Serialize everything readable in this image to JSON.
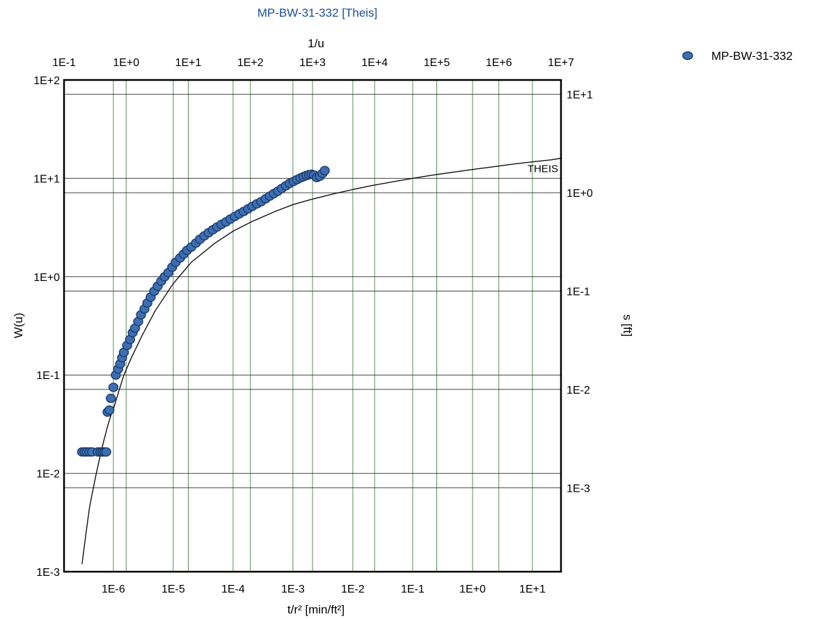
{
  "chart_data": {
    "type": "scatter",
    "title": "MP-BW-31-332 [Theis]",
    "xlabel": "t/r² [min/ft²]",
    "ylabel": "W(u)",
    "x2label": "1/u",
    "y2label": "s [ft]",
    "x_scale": "log",
    "y_scale": "log",
    "xlim": [
      1.5e-07,
      30.0
    ],
    "ylim": [
      0.001,
      100.0
    ],
    "x2lim": [
      0.1,
      10000000.0
    ],
    "y2lim": [
      0.00014,
      14.0
    ],
    "grid": true,
    "legend_position": "top-right",
    "x_ticks": [
      "1E-6",
      "1E-5",
      "1E-4",
      "1E-3",
      "1E-2",
      "1E-1",
      "1E+0",
      "1E+1"
    ],
    "y_ticks": [
      "1E-3",
      "1E-2",
      "1E-1",
      "1E+0",
      "1E+1",
      "1E+2"
    ],
    "x2_ticks": [
      "1E-1",
      "1E+0",
      "1E+1",
      "1E+2",
      "1E+3",
      "1E+4",
      "1E+5",
      "1E+6",
      "1E+7"
    ],
    "y2_ticks": [
      "1E-3",
      "1E-2",
      "1E-1",
      "1E+0",
      "1E+1"
    ],
    "series": [
      {
        "name": "MP-BW-31-332",
        "kind": "points",
        "color": "#3d6fb5",
        "x": [
          3e-07,
          3.3e-07,
          3.6e-07,
          4e-07,
          4.4e-07,
          5.5e-07,
          6.1e-07,
          6.6e-07,
          7.1e-07,
          7.6e-07,
          8e-07,
          8.6e-07,
          9.1e-07,
          1e-06,
          1.1e-06,
          1.2e-06,
          1.3e-06,
          1.4e-06,
          1.5e-06,
          1.7e-06,
          1.9e-06,
          2.1e-06,
          2.3e-06,
          2.6e-06,
          2.9e-06,
          3.3e-06,
          3.7e-06,
          4.2e-06,
          4.8e-06,
          5.5e-06,
          6.3e-06,
          7.2e-06,
          8.3e-06,
          9.6e-06,
          1.1e-05,
          1.3e-05,
          1.5e-05,
          1.7e-05,
          2e-05,
          2.4e-05,
          2.8e-05,
          3.3e-05,
          3.9e-05,
          4.6e-05,
          5.4e-05,
          6.4e-05,
          7.6e-05,
          9e-05,
          0.000107,
          0.000127,
          0.00015,
          0.000178,
          0.00021,
          0.00025,
          0.000295,
          0.00035,
          0.00041,
          0.00048,
          0.00056,
          0.00065,
          0.00076,
          0.00088,
          0.00102,
          0.00117,
          0.00133,
          0.0015,
          0.00168,
          0.00186,
          0.00205,
          0.00225,
          0.0025,
          0.0028,
          0.0031,
          0.0034
        ],
        "y": [
          0.0165,
          0.0165,
          0.0165,
          0.0165,
          0.0165,
          0.0165,
          0.0165,
          0.0165,
          0.0165,
          0.0165,
          0.042,
          0.044,
          0.058,
          0.075,
          0.1,
          0.115,
          0.13,
          0.15,
          0.17,
          0.2,
          0.23,
          0.27,
          0.3,
          0.35,
          0.41,
          0.47,
          0.54,
          0.62,
          0.71,
          0.8,
          0.9,
          1.0,
          1.1,
          1.25,
          1.4,
          1.55,
          1.7,
          1.85,
          2.0,
          2.2,
          2.4,
          2.6,
          2.8,
          3.0,
          3.2,
          3.4,
          3.6,
          3.85,
          4.1,
          4.35,
          4.6,
          4.9,
          5.2,
          5.5,
          5.8,
          6.2,
          6.6,
          7.0,
          7.4,
          7.9,
          8.4,
          8.9,
          9.3,
          9.7,
          10.1,
          10.4,
          10.7,
          10.9,
          11.0,
          10.8,
          10.2,
          10.5,
          11.2,
          12.0
        ]
      },
      {
        "name": "THEIS",
        "kind": "line",
        "color": "#111111",
        "x": [
          3e-07,
          3.5e-07,
          4e-07,
          4.5e-07,
          5e-07,
          6e-07,
          7e-07,
          8e-07,
          9e-07,
          1e-06,
          1.2e-06,
          1.5e-06,
          2e-06,
          3e-06,
          5e-06,
          1e-05,
          2e-05,
          5e-05,
          0.0001,
          0.0002,
          0.0005,
          0.001,
          0.002,
          0.005,
          0.01,
          0.02,
          0.05,
          0.1,
          0.2,
          0.5,
          1.0,
          2.0,
          5.0,
          10.0,
          20.0,
          30.0
        ],
        "y": [
          0.0012,
          0.0025,
          0.0045,
          0.0065,
          0.009,
          0.015,
          0.022,
          0.03,
          0.038,
          0.045,
          0.065,
          0.1,
          0.15,
          0.25,
          0.45,
          0.85,
          1.4,
          2.2,
          2.9,
          3.6,
          4.6,
          5.4,
          6.1,
          7.0,
          7.7,
          8.4,
          9.3,
          10.0,
          10.7,
          11.6,
          12.3,
          13.0,
          14.0,
          14.7,
          15.4,
          16.0
        ]
      }
    ]
  }
}
